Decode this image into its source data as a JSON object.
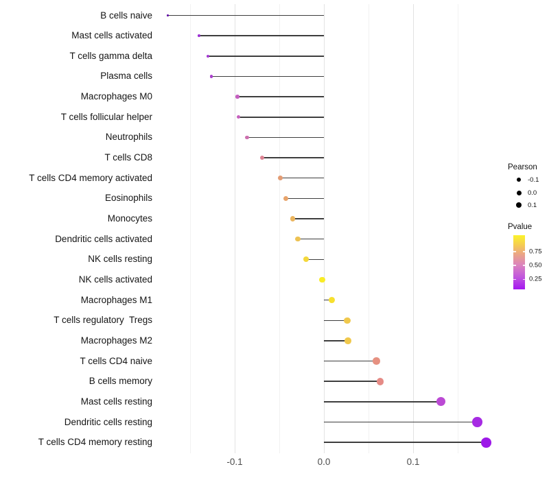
{
  "chart_data": {
    "type": "scatter",
    "variant": "lollipop",
    "orientation": "horizontal",
    "title": "",
    "xlabel": "",
    "ylabel": "",
    "xlim": [
      -0.185,
      0.19
    ],
    "grid": "vertical-only",
    "categories": [
      "B cells naive",
      "Mast cells activated",
      "T cells gamma delta",
      "Plasma cells",
      "Macrophages M0",
      "T cells follicular helper",
      "Neutrophils",
      "T cells CD8",
      "T cells CD4 memory activated",
      "Eosinophils",
      "Monocytes",
      "Dendritic cells activated",
      "NK cells resting",
      "NK cells activated",
      "Macrophages M1",
      "T cells regulatory  Tregs",
      "Macrophages M2",
      "T cells CD4 naive",
      "B cells memory",
      "Mast cells resting",
      "Dendritic cells resting",
      "T cells CD4 memory resting"
    ],
    "values": [
      -0.175,
      -0.14,
      -0.13,
      -0.126,
      -0.097,
      -0.096,
      -0.086,
      -0.069,
      -0.049,
      -0.043,
      -0.035,
      -0.029,
      -0.02,
      -0.002,
      0.009,
      0.026,
      0.027,
      0.059,
      0.063,
      0.131,
      0.172,
      0.182
    ],
    "point_colors": [
      "#5E01A5",
      "#9B2FD1",
      "#A438D2",
      "#AB41CC",
      "#C55FC0",
      "#C661BE",
      "#CC6FAE",
      "#DC8292",
      "#E39C74",
      "#E8A46B",
      "#EBB55E",
      "#EDC253",
      "#F4D83B",
      "#F9EC25",
      "#F7E02E",
      "#F0C84C",
      "#F0C84C",
      "#E69181",
      "#E58B86",
      "#BB4AD4",
      "#A62BE3",
      "#9D19E8"
    ],
    "x_major_ticks": [
      -0.1,
      0.0,
      0.1
    ],
    "x_tick_labels": [
      "-0.1",
      "0.0",
      "0.1"
    ],
    "x_minor_ticks": [
      -0.15,
      -0.05,
      0.05,
      0.15
    ],
    "legend_position": "right",
    "size_legend": {
      "title": "Pearson",
      "labels": [
        "-0.1",
        "0.0",
        "0.1"
      ]
    },
    "color_legend": {
      "title": "Pvalue",
      "tick_labels": [
        "0.75",
        "0.50",
        "0.25"
      ],
      "tick_fractions_from_top": [
        0.304,
        0.557,
        0.816
      ],
      "gradient_bottom_to_top": [
        {
          "pos": 0,
          "color": "#A416F0"
        },
        {
          "pos": 22,
          "color": "#C055DE"
        },
        {
          "pos": 45,
          "color": "#DB84BE"
        },
        {
          "pos": 65,
          "color": "#EBA585"
        },
        {
          "pos": 82,
          "color": "#F5CC52"
        },
        {
          "pos": 100,
          "color": "#FBF32B"
        }
      ]
    }
  }
}
